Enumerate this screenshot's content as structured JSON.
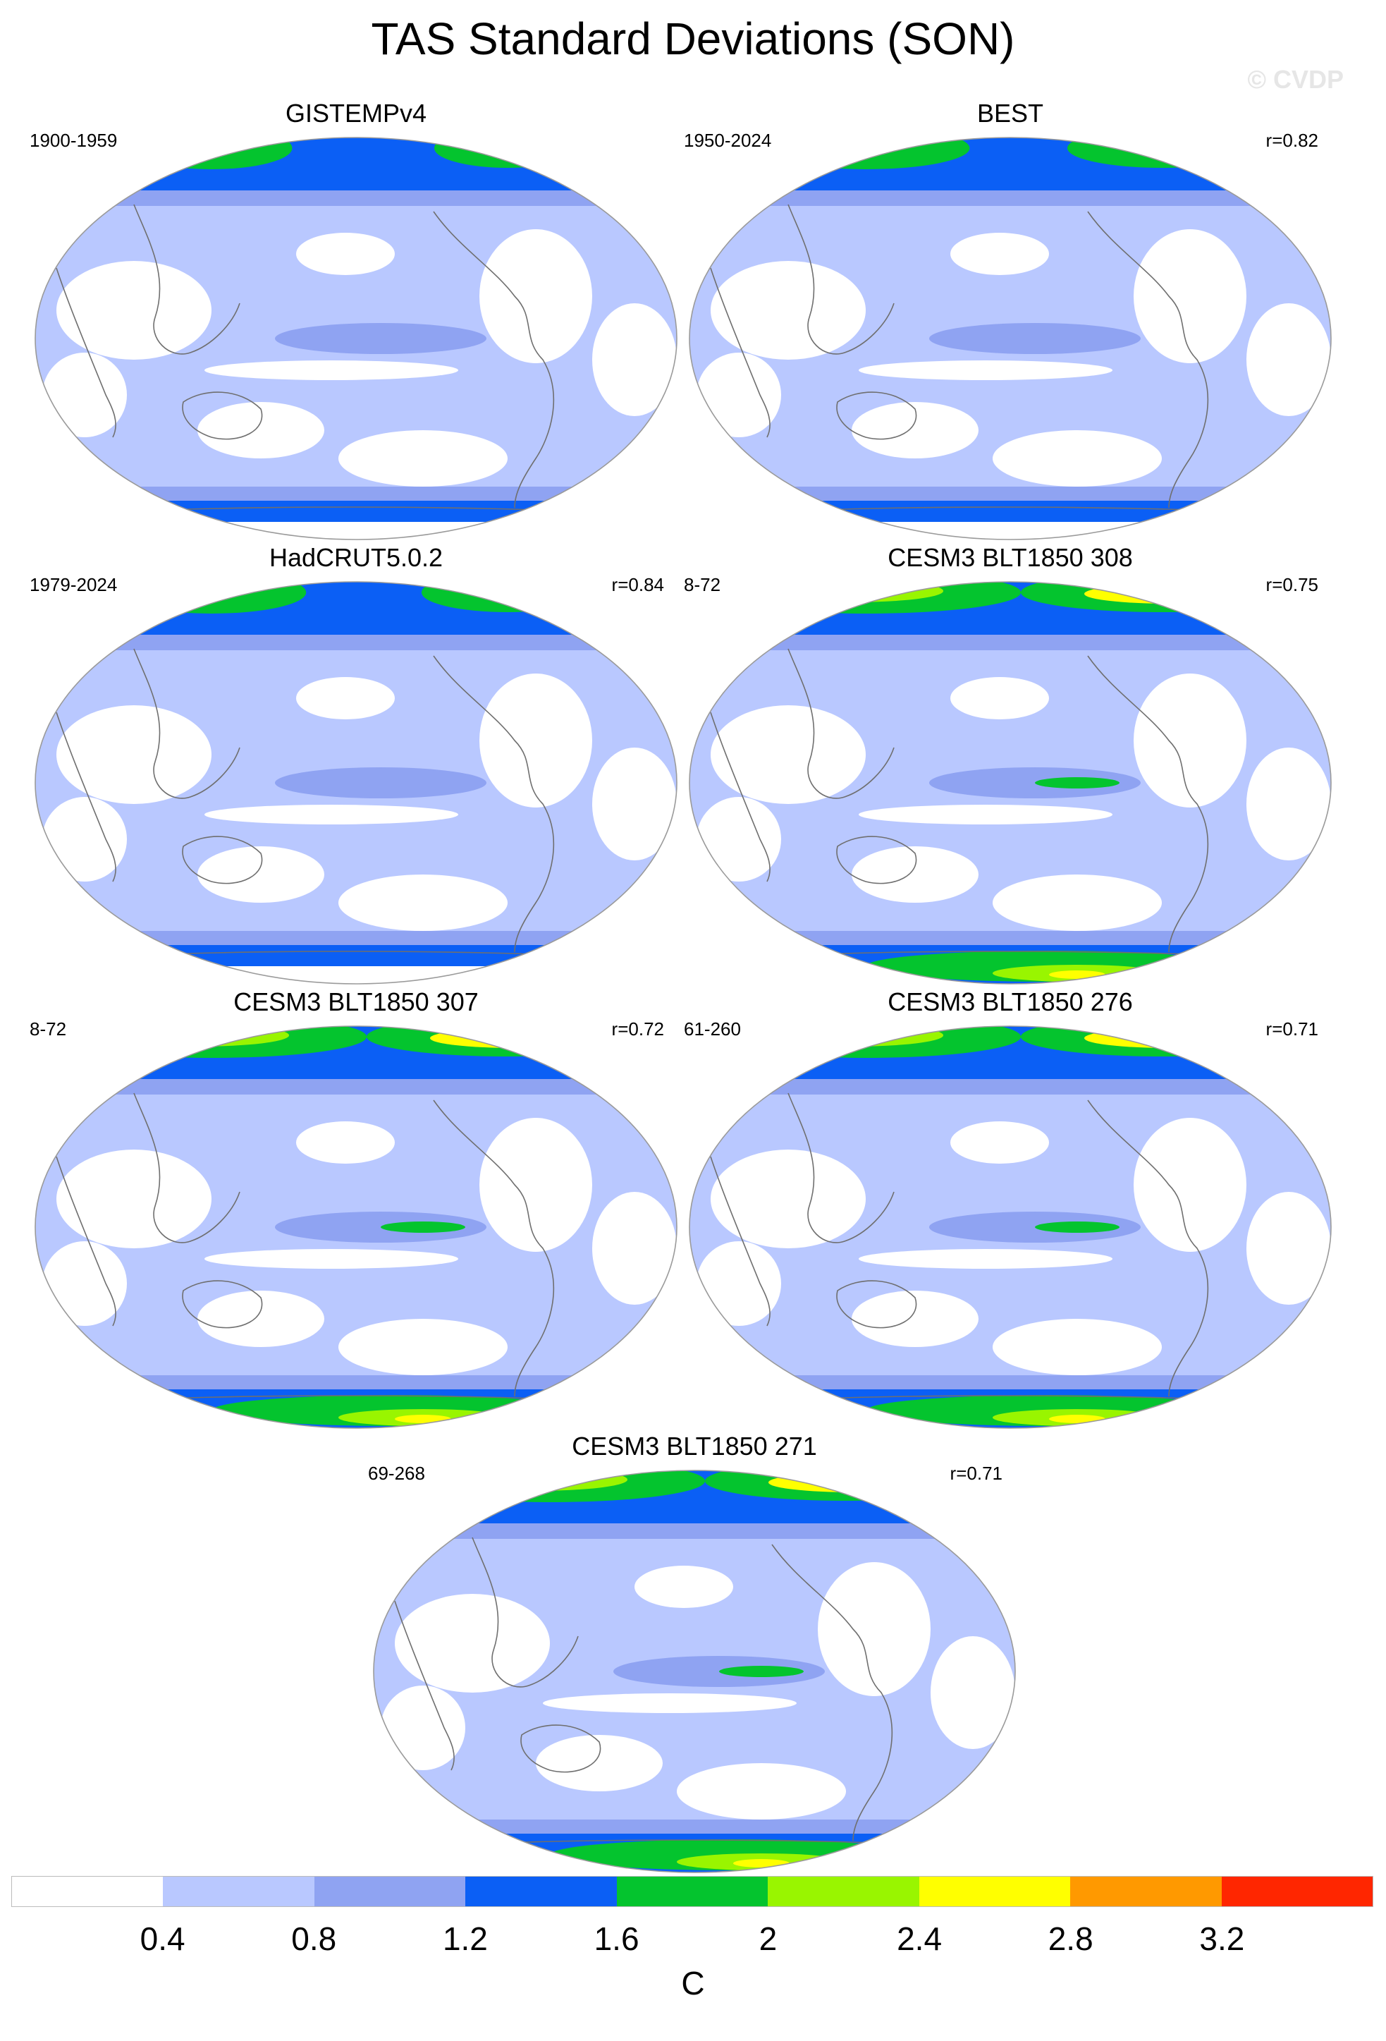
{
  "title": "TAS Standard Deviations (SON)",
  "watermark": "© CVDP",
  "colors": {
    "bin0": "#ffffff",
    "bin1": "#b9c8ff",
    "bin2": "#8fa3f2",
    "bin3": "#0b5ff5",
    "bin4": "#04c42e",
    "bin5": "#99f500",
    "bin6": "#ffff00",
    "bin7": "#ff9900",
    "bin8": "#ff2600",
    "coast": "#6f6f6f",
    "frame": "#9a9a9a"
  },
  "panels": [
    {
      "title": "GISTEMPv4",
      "period": "1900-1959",
      "corr": ""
    },
    {
      "title": "BEST",
      "period": "1950-2024",
      "corr": "r=0.82"
    },
    {
      "title": "HadCRUT5.0.2",
      "period": "1979-2024",
      "corr": "r=0.84"
    },
    {
      "title": "CESM3 BLT1850 308",
      "period": "8-72",
      "corr": "r=0.75"
    },
    {
      "title": "CESM3 BLT1850 307",
      "period": "8-72",
      "corr": "r=0.72"
    },
    {
      "title": "CESM3 BLT1850 276",
      "period": "61-260",
      "corr": "r=0.71"
    },
    {
      "title": "CESM3 BLT1850 271",
      "period": "69-268",
      "corr": "r=0.71"
    }
  ],
  "legend": {
    "ticks": [
      "0.4",
      "0.8",
      "1.2",
      "1.6",
      "2",
      "2.4",
      "2.8",
      "3.2"
    ],
    "units": "C"
  }
}
